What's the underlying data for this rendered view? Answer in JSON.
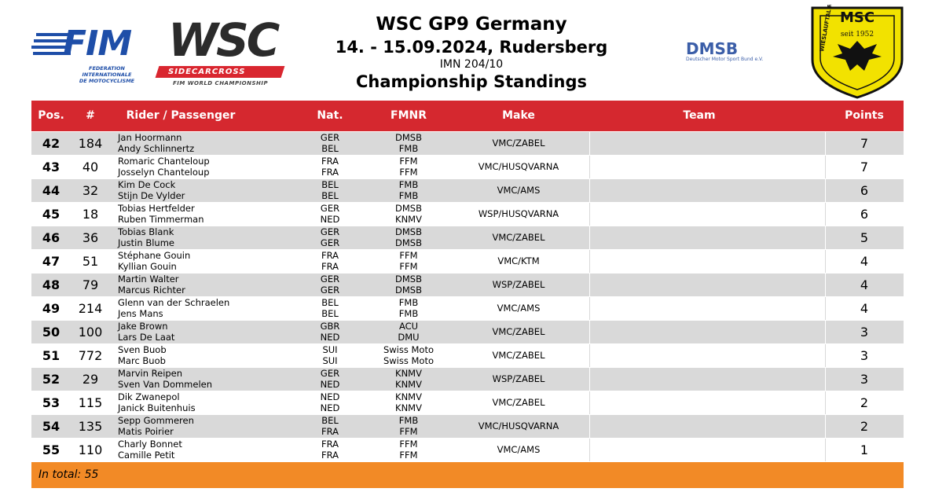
{
  "header": {
    "title": "WSC GP9 Germany",
    "date_place": "14. - 15.09.2024, Rudersberg",
    "imn": "IMN 204/10",
    "subtitle": "Championship Standings"
  },
  "logos": {
    "fim_word": "FIM",
    "fim_sub_line1": "FEDERATION INTERNATIONALE",
    "fim_sub_line2": "DE MOTOCYCLISME",
    "wsc_word": "WSC",
    "wsc_band": "SIDECARCROSS",
    "wsc_sub": "FIM WORLD CHAMPIONSHIP",
    "dmsb_word": "DMSB",
    "dmsb_sub": "Deutscher Motor Sport Bund e.V.",
    "msc_word": "MSC",
    "msc_since": "seit 1952",
    "msc_arc": "WIESLAUFTAL RUDERSBERG"
  },
  "colors": {
    "header_red": "#d5282f",
    "row_grey": "#d9d9d9",
    "total_orange": "#f28a26"
  },
  "table": {
    "columns": [
      "Pos.",
      "#",
      "Rider / Passenger",
      "Nat.",
      "FMNR",
      "Make",
      "Team",
      "Points"
    ],
    "rows": [
      {
        "pos": "42",
        "num": "184",
        "rider1": "Jan Hoormann",
        "rider2": "Andy Schlinnertz",
        "nat1": "GER",
        "nat2": "BEL",
        "fmnr1": "DMSB",
        "fmnr2": "FMB",
        "make": "VMC/ZABEL",
        "team": "",
        "points": "7"
      },
      {
        "pos": "43",
        "num": "40",
        "rider1": "Romaric Chanteloup",
        "rider2": "Josselyn Chanteloup",
        "nat1": "FRA",
        "nat2": "FRA",
        "fmnr1": "FFM",
        "fmnr2": "FFM",
        "make": "VMC/HUSQVARNA",
        "team": "",
        "points": "7"
      },
      {
        "pos": "44",
        "num": "32",
        "rider1": "Kim De Cock",
        "rider2": "Stijn De Vylder",
        "nat1": "BEL",
        "nat2": "BEL",
        "fmnr1": "FMB",
        "fmnr2": "FMB",
        "make": "VMC/AMS",
        "team": "",
        "points": "6"
      },
      {
        "pos": "45",
        "num": "18",
        "rider1": "Tobias Hertfelder",
        "rider2": "Ruben Timmerman",
        "nat1": "GER",
        "nat2": "NED",
        "fmnr1": "DMSB",
        "fmnr2": "KNMV",
        "make": "WSP/HUSQVARNA",
        "team": "",
        "points": "6"
      },
      {
        "pos": "46",
        "num": "36",
        "rider1": "Tobias Blank",
        "rider2": "Justin Blume",
        "nat1": "GER",
        "nat2": "GER",
        "fmnr1": "DMSB",
        "fmnr2": "DMSB",
        "make": "VMC/ZABEL",
        "team": "",
        "points": "5"
      },
      {
        "pos": "47",
        "num": "51",
        "rider1": "Stéphane Gouin",
        "rider2": "Kyllian  Gouin",
        "nat1": "FRA",
        "nat2": "FRA",
        "fmnr1": "FFM",
        "fmnr2": "FFM",
        "make": "VMC/KTM",
        "team": "",
        "points": "4"
      },
      {
        "pos": "48",
        "num": "79",
        "rider1": "Martin Walter",
        "rider2": "Marcus Richter",
        "nat1": "GER",
        "nat2": "GER",
        "fmnr1": "DMSB",
        "fmnr2": "DMSB",
        "make": "WSP/ZABEL",
        "team": "",
        "points": "4"
      },
      {
        "pos": "49",
        "num": "214",
        "rider1": "Glenn van der Schraelen",
        "rider2": "Jens Mans",
        "nat1": "BEL",
        "nat2": "BEL",
        "fmnr1": "FMB",
        "fmnr2": "FMB",
        "make": "VMC/AMS",
        "team": "",
        "points": "4"
      },
      {
        "pos": "50",
        "num": "100",
        "rider1": "Jake Brown",
        "rider2": "Lars De Laat",
        "nat1": "GBR",
        "nat2": "NED",
        "fmnr1": "ACU",
        "fmnr2": "DMU",
        "make": "VMC/ZABEL",
        "team": "",
        "points": "3"
      },
      {
        "pos": "51",
        "num": "772",
        "rider1": "Sven Buob",
        "rider2": "Marc Buob",
        "nat1": "SUI",
        "nat2": "SUI",
        "fmnr1": "Swiss Moto",
        "fmnr2": "Swiss Moto",
        "make": "VMC/ZABEL",
        "team": "",
        "points": "3"
      },
      {
        "pos": "52",
        "num": "29",
        "rider1": "Marvin Reipen",
        "rider2": "Sven Van Dommelen",
        "nat1": "GER",
        "nat2": "NED",
        "fmnr1": "KNMV",
        "fmnr2": "KNMV",
        "make": "WSP/ZABEL",
        "team": "",
        "points": "3"
      },
      {
        "pos": "53",
        "num": "115",
        "rider1": "Dik Zwanepol",
        "rider2": "Janick Buitenhuis",
        "nat1": "NED",
        "nat2": "NED",
        "fmnr1": "KNMV",
        "fmnr2": "KNMV",
        "make": "VMC/ZABEL",
        "team": "",
        "points": "2"
      },
      {
        "pos": "54",
        "num": "135",
        "rider1": "Sepp Gommeren",
        "rider2": "Matis Poirier",
        "nat1": "BEL",
        "nat2": "FRA",
        "fmnr1": "FMB",
        "fmnr2": "FFM",
        "make": "VMC/HUSQVARNA",
        "team": "",
        "points": "2"
      },
      {
        "pos": "55",
        "num": "110",
        "rider1": "Charly  Bonnet",
        "rider2": "Camille Petit",
        "nat1": "FRA",
        "nat2": "FRA",
        "fmnr1": "FFM",
        "fmnr2": "FFM",
        "make": "VMC/AMS",
        "team": "",
        "points": "1"
      }
    ],
    "total_label": "In total: 55"
  }
}
